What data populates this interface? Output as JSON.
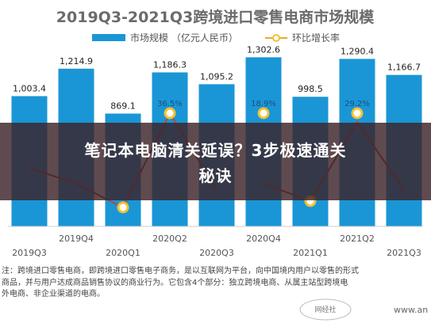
{
  "chart_data": {
    "type": "bar",
    "title": "2019Q3-2021Q3跨境进口零售电商市场规模",
    "categories": [
      "2019Q3",
      "2019Q4",
      "2020Q1",
      "2020Q2",
      "2020Q3",
      "2020Q4",
      "2021Q1",
      "2021Q2",
      "2021Q3"
    ],
    "series": [
      {
        "name": "市场规模 （亿元人民币）",
        "type": "bar",
        "color": "#1a96d6",
        "values": [
          1003.4,
          1214.9,
          869.1,
          1186.3,
          1095.2,
          1302.6,
          998.5,
          1290.4,
          1166.7
        ],
        "labels": [
          "1,003.4",
          "1,214.9",
          "869.1",
          "1,186.3",
          "1,095.2",
          "1,302.6",
          "998.5",
          "1,290.4",
          "1,166.7"
        ]
      },
      {
        "name": "环比增长率",
        "type": "line",
        "color": "#b5463d",
        "marker_color": "#f2c230",
        "values": [
          null,
          null,
          null,
          36.5,
          null,
          18.9,
          null,
          29.2,
          null
        ],
        "labels": [
          "",
          "",
          "",
          "36.5%",
          "",
          "18.9%",
          "",
          "29.2%",
          ""
        ]
      }
    ],
    "ylim": [
      0,
      1500
    ],
    "legend": "top",
    "grid": false
  },
  "notes": {
    "line1": "注：跨境进口零售电商，即跨境进口零售电子商务，是以互联网为平台，向中国境内用户以零售的形式",
    "line2": "商品，并与用户达成商品销售协议的商业行为。它包含4个部分：独立跨境电商、从属主站型跨境电",
    "line3": "外电商、非企业渠道的电商。"
  },
  "banner": {
    "line1": "笔记本电脑清关延误？3步极速通关",
    "line2": "秘诀"
  },
  "watermark": "www.an",
  "seal": "网经社"
}
